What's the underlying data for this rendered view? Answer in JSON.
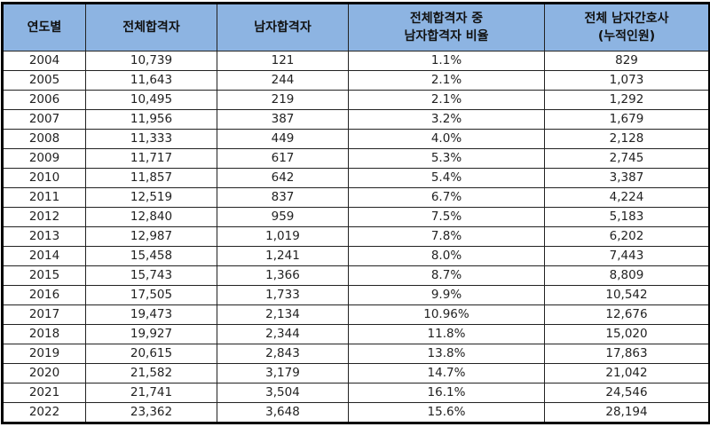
{
  "table": {
    "headers": [
      "연도별",
      "전체합격자",
      "남자합격자",
      "전체합격자 중\n남자합격자 비율",
      "전체 남자간호사\n(누적인원)"
    ],
    "header_bg": "#8db4e2",
    "rows": [
      [
        "2004",
        "10,739",
        "121",
        "1.1%",
        "829"
      ],
      [
        "2005",
        "11,643",
        "244",
        "2.1%",
        "1,073"
      ],
      [
        "2006",
        "10,495",
        "219",
        "2.1%",
        "1,292"
      ],
      [
        "2007",
        "11,956",
        "387",
        "3.2%",
        "1,679"
      ],
      [
        "2008",
        "11,333",
        "449",
        "4.0%",
        "2,128"
      ],
      [
        "2009",
        "11,717",
        "617",
        "5.3%",
        "2,745"
      ],
      [
        "2010",
        "11,857",
        "642",
        "5.4%",
        "3,387"
      ],
      [
        "2011",
        "12,519",
        "837",
        "6.7%",
        "4,224"
      ],
      [
        "2012",
        "12,840",
        "959",
        "7.5%",
        "5,183"
      ],
      [
        "2013",
        "12,987",
        "1,019",
        "7.8%",
        "6,202"
      ],
      [
        "2014",
        "15,458",
        "1,241",
        "8.0%",
        "7,443"
      ],
      [
        "2015",
        "15,743",
        "1,366",
        "8.7%",
        "8,809"
      ],
      [
        "2016",
        "17,505",
        "1,733",
        "9.9%",
        "10,542"
      ],
      [
        "2017",
        "19,473",
        "2,134",
        "10.96%",
        "12,676"
      ],
      [
        "2018",
        "19,927",
        "2,344",
        "11.8%",
        "15,020"
      ],
      [
        "2019",
        "20,615",
        "2,843",
        "13.8%",
        "17,863"
      ],
      [
        "2020",
        "21,582",
        "3,179",
        "14.7%",
        "21,042"
      ],
      [
        "2021",
        "21,741",
        "3,504",
        "16.1%",
        "24,546"
      ],
      [
        "2022",
        "23,362",
        "3,648",
        "15.6%",
        "28,194"
      ]
    ]
  }
}
